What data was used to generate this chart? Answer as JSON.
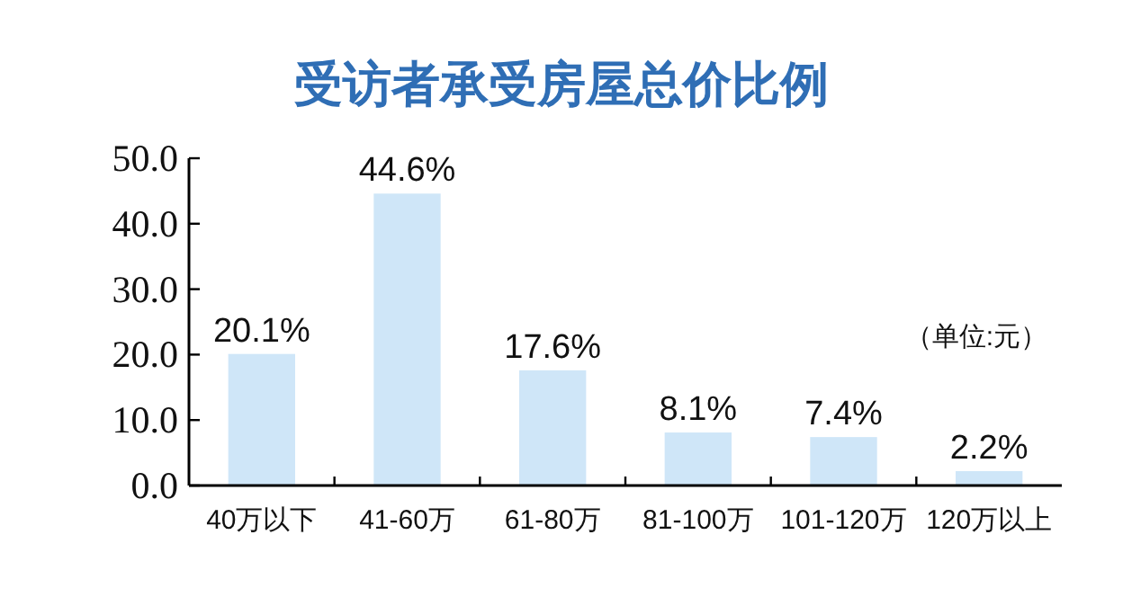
{
  "chart_data": {
    "type": "bar",
    "title": "受访者承受房屋总价比例",
    "categories": [
      "40万以下",
      "41-60万",
      "61-80万",
      "81-100万",
      "101-120万",
      "120万以上"
    ],
    "values": [
      20.1,
      44.6,
      17.6,
      8.1,
      7.4,
      2.2
    ],
    "value_labels": [
      "20.1%",
      "44.6%",
      "17.6%",
      "8.1%",
      "7.4%",
      "2.2%"
    ],
    "color": "#cfe6f8",
    "ylim": [
      0,
      50
    ],
    "yticks": [
      {
        "value": 0,
        "label": "0.0"
      },
      {
        "value": 10,
        "label": "10.0"
      },
      {
        "value": 20,
        "label": "20.0"
      },
      {
        "value": 30,
        "label": "30.0"
      },
      {
        "value": 40,
        "label": "40.0"
      },
      {
        "value": 50,
        "label": "50.0"
      }
    ],
    "annotations": [
      "（单位:元）"
    ]
  }
}
